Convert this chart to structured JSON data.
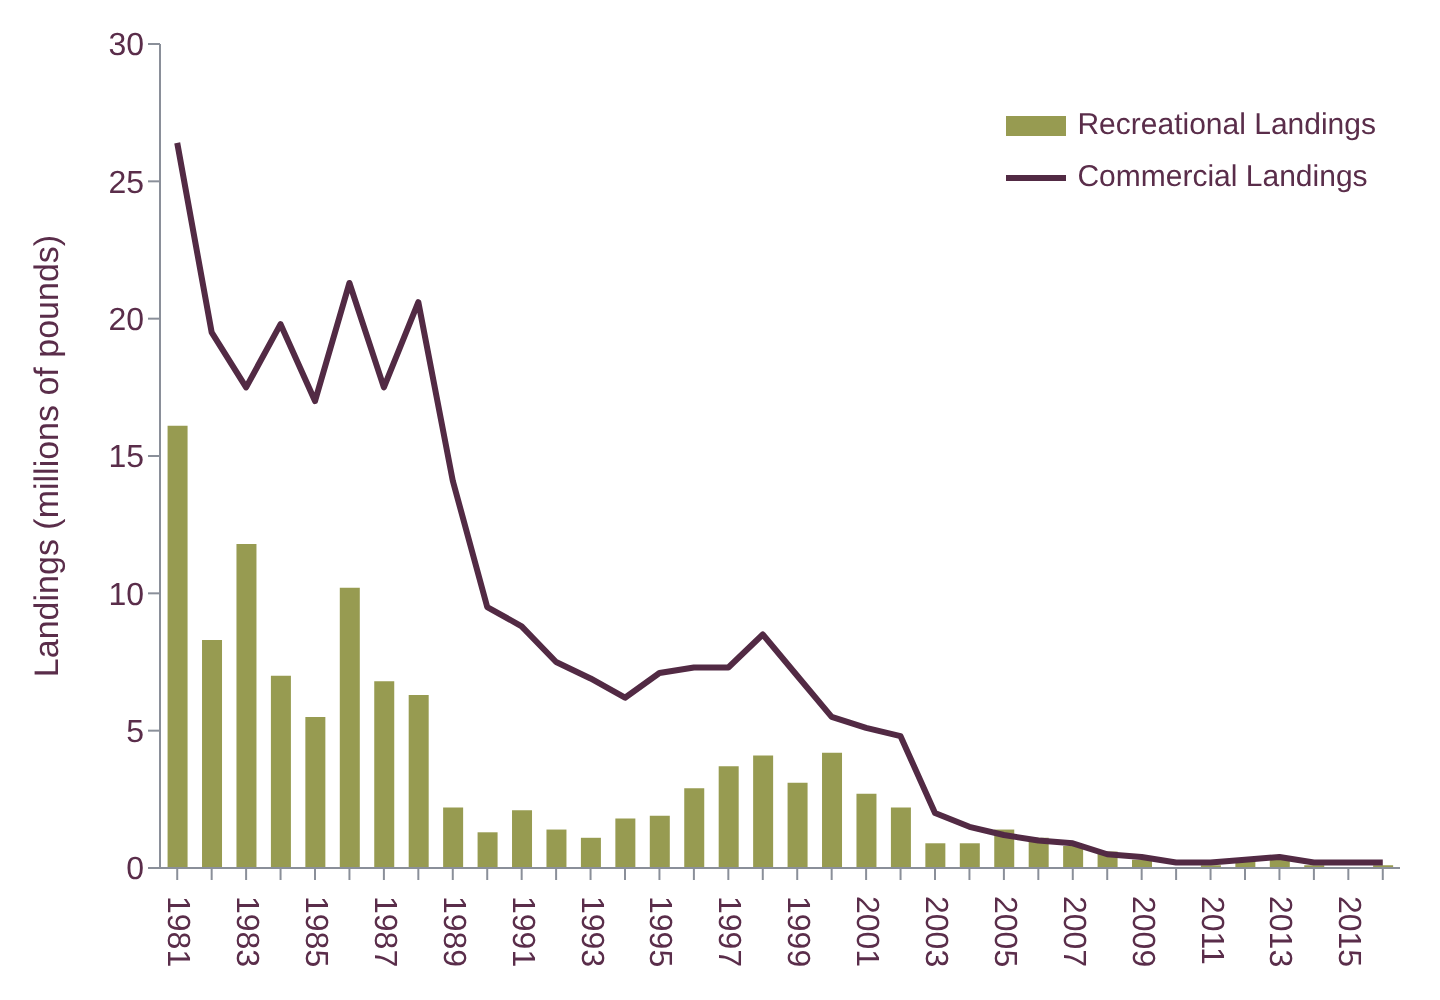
{
  "chart_data": {
    "type": "bar",
    "ylabel": "Landings (millions of pounds)",
    "categories": [
      "1981",
      null,
      "1983",
      null,
      "1985",
      null,
      "1987",
      null,
      "1989",
      null,
      "1991",
      null,
      "1993",
      null,
      "1995",
      null,
      "1997",
      null,
      "1999",
      null,
      "2001",
      null,
      "2003",
      null,
      "2005",
      null,
      "2007",
      null,
      "2009",
      null,
      "2011",
      null,
      "2013",
      null,
      "2015",
      null
    ],
    "series": [
      {
        "name": "Recreational Landings",
        "color": "#979b51",
        "values": [
          16.1,
          8.3,
          11.8,
          7.0,
          5.5,
          10.2,
          6.8,
          6.3,
          2.2,
          1.3,
          2.1,
          1.4,
          1.1,
          1.8,
          1.9,
          2.9,
          3.7,
          4.1,
          3.1,
          4.2,
          2.7,
          2.2,
          0.9,
          0.9,
          1.4,
          1.1,
          0.8,
          0.6,
          0.3,
          null,
          0.1,
          0.3,
          0.3,
          0.1,
          null,
          0.1
        ]
      },
      {
        "name": "Commercial Landings",
        "type": "line",
        "color": "#522a44",
        "values": [
          26.4,
          19.5,
          17.5,
          19.8,
          17.0,
          21.3,
          17.5,
          20.6,
          14.1,
          9.5,
          8.8,
          7.5,
          6.9,
          6.2,
          7.1,
          7.3,
          7.3,
          8.5,
          7.0,
          5.5,
          5.1,
          4.8,
          2.0,
          1.5,
          1.2,
          1.0,
          0.9,
          0.5,
          0.4,
          0.2,
          0.2,
          0.3,
          0.4,
          0.2,
          0.2,
          0.2
        ]
      }
    ],
    "ylim": [
      0,
      30
    ],
    "yticks": [
      0,
      5,
      10,
      15,
      20,
      25,
      30
    ],
    "grid": false,
    "legend": "top right",
    "marker": "none"
  }
}
